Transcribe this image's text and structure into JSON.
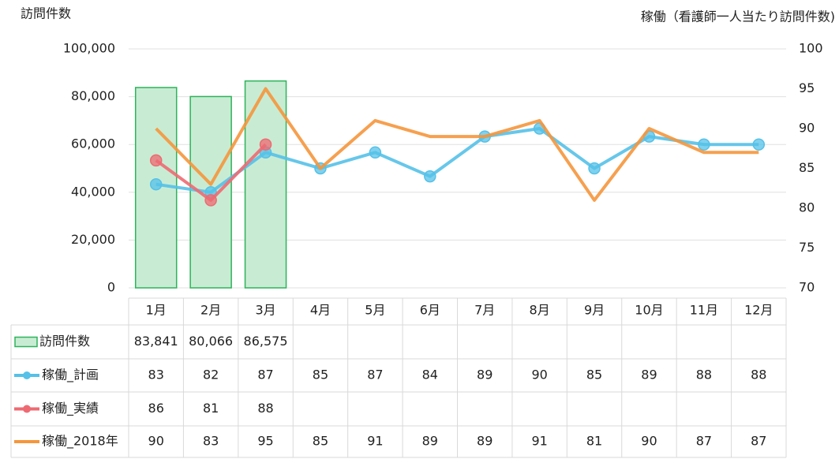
{
  "chart_data": {
    "type": "bar_line_table",
    "y_axis_label": "訪問件数",
    "y2_axis_label": "稼働（看護師一人当たり訪問件数)",
    "categories": [
      "1月",
      "2月",
      "3月",
      "4月",
      "5月",
      "6月",
      "7月",
      "8月",
      "9月",
      "10月",
      "11月",
      "12月"
    ],
    "ylim": [
      0,
      100000
    ],
    "yticks": [
      0,
      {
        "value": 20000,
        "label": "20,000"
      },
      {
        "value": 40000,
        "label": "40,000"
      },
      {
        "value": 60000,
        "label": "60,000"
      },
      {
        "value": 80000,
        "label": "80,000"
      },
      {
        "value": 100000,
        "label": "100,000"
      }
    ],
    "y2lim": [
      70,
      100
    ],
    "y2ticks": [
      70,
      75,
      80,
      85,
      90,
      95,
      100
    ],
    "grid": true,
    "series": [
      {
        "name": "訪問件数",
        "type": "bar",
        "color": "#2db35a",
        "fill": "#c8ecd3",
        "values": [
          83841,
          80066,
          86575,
          null,
          null,
          null,
          null,
          null,
          null,
          null,
          null,
          null
        ],
        "value_labels": [
          "83,841",
          "80,066",
          "86,575",
          null,
          null,
          null,
          null,
          null,
          null,
          null,
          null,
          null
        ]
      },
      {
        "name": "稼働_計画",
        "type": "line",
        "axis": "y2",
        "color": "#55c1e8",
        "markers": true,
        "values": [
          83,
          82,
          87,
          85,
          87,
          84,
          89,
          90,
          85,
          89,
          88,
          88
        ]
      },
      {
        "name": "稼働_実績",
        "type": "line",
        "axis": "y2",
        "color": "#ee6a72",
        "markers": true,
        "values": [
          86,
          81,
          88,
          null,
          null,
          null,
          null,
          null,
          null,
          null,
          null,
          null
        ]
      },
      {
        "name": "稼働_2018年",
        "type": "line",
        "axis": "y2",
        "color": "#f5963c",
        "markers": false,
        "values": [
          90,
          83,
          95,
          85,
          91,
          89,
          89,
          91,
          81,
          90,
          87,
          87
        ]
      }
    ]
  }
}
